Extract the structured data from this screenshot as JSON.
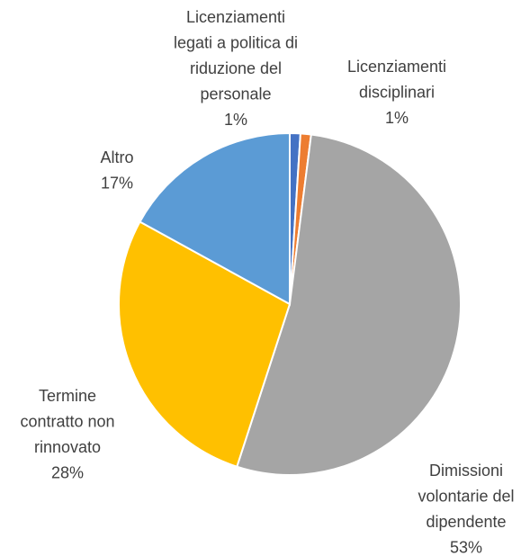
{
  "chart_data": {
    "type": "pie",
    "categories": [
      "Licenziamenti\nlegati a politica di\nriduzione del\npersonale",
      "Licenziamenti\ndisciplinari",
      "Dimissioni\nvolontarie del\ndipendente",
      "Termine\ncontratto non\nrinnovato",
      "Altro"
    ],
    "values": [
      1,
      1,
      53,
      28,
      17
    ],
    "value_labels": [
      "1%",
      "1%",
      "53%",
      "28%",
      "17%"
    ],
    "colors": [
      "#4472c4",
      "#ed7d31",
      "#a5a5a5",
      "#ffc000",
      "#5b9bd5"
    ]
  }
}
